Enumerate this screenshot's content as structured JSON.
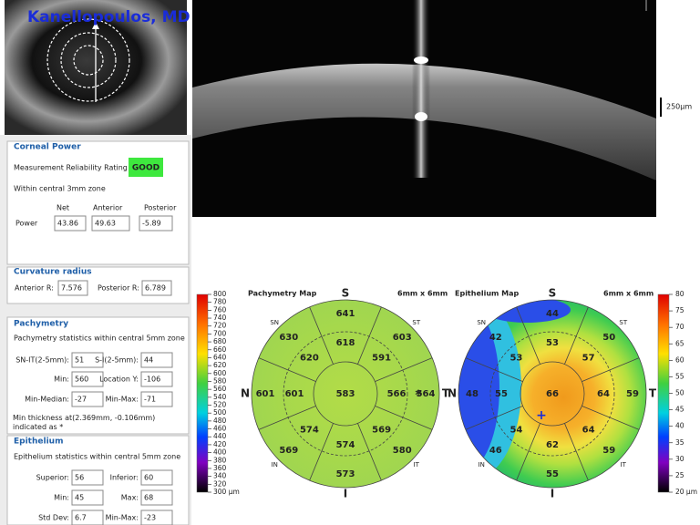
{
  "header": {
    "doctor": "Kanellopoulos, MD"
  },
  "oct_scale": "250µm",
  "corneal_power": {
    "title": "Corneal Power",
    "reliability_label": "Measurement Reliability Rating",
    "reliability": "GOOD",
    "zone": "Within central 3mm zone",
    "columns": [
      "Net",
      "Anterior",
      "Posterior"
    ],
    "row_label": "Power",
    "values": [
      43.86,
      49.63,
      -5.89
    ]
  },
  "curvature_radius": {
    "title": "Curvature radius",
    "fields": [
      {
        "label": "Anterior R:",
        "value": 7.576
      },
      {
        "label": "Posterior R:",
        "value": 6.789
      }
    ]
  },
  "pachymetry": {
    "title": "Pachymetry",
    "note": "Pachymetry statistics within central 5mm zone",
    "fields": [
      {
        "label": "SN-IT(2-5mm):",
        "value": 51
      },
      {
        "label": "S-I(2-5mm):",
        "value": 44
      },
      {
        "label": "Min:",
        "value": 560
      },
      {
        "label": "Location Y:",
        "value": -106
      },
      {
        "label": "Min-Median:",
        "value": -27
      },
      {
        "label": "Min-Max:",
        "value": -71
      }
    ],
    "footnote": "Min thickness at(2.369mm, -0.106mm) indicated as *"
  },
  "epithelium": {
    "title": "Epithelium",
    "note": "Epithelium statistics within central 5mm zone",
    "fields": [
      {
        "label": "Superior:",
        "value": 56
      },
      {
        "label": "Inferior:",
        "value": 60
      },
      {
        "label": "Min:",
        "value": 45
      },
      {
        "label": "Max:",
        "value": 68
      },
      {
        "label": "Std Dev:",
        "value": 6.7
      },
      {
        "label": "Min-Max:",
        "value": -23
      }
    ]
  },
  "maps": [
    {
      "title": "Pachymetry Map",
      "size": "6mm x 6mm",
      "orientation": [
        "S",
        "ST",
        "T",
        "IT",
        "I",
        "IN",
        "N",
        "SN"
      ],
      "center": 583,
      "inner": [
        618,
        591,
        566,
        569,
        574,
        574,
        601,
        620
      ],
      "outer": [
        641,
        603,
        564,
        580,
        573,
        569,
        601,
        630
      ],
      "marker": "*",
      "scale": [
        "800",
        "780",
        "760",
        "740",
        "720",
        "700",
        "680",
        "660",
        "640",
        "620",
        "600",
        "580",
        "560",
        "540",
        "520",
        "500",
        "480",
        "460",
        "440",
        "420",
        "400",
        "380",
        "360",
        "340",
        "320",
        "300 µm"
      ]
    },
    {
      "title": "Epithelium Map",
      "size": "6mm x 6mm",
      "orientation": [
        "S",
        "ST",
        "T",
        "IT",
        "I",
        "IN",
        "N",
        "SN"
      ],
      "center": 66,
      "inner": [
        53,
        57,
        64,
        64,
        62,
        54,
        55,
        53
      ],
      "outer": [
        44,
        50,
        59,
        59,
        55,
        46,
        48,
        42
      ],
      "marker": "+",
      "scale": [
        "80",
        "75",
        "70",
        "65",
        "60",
        "55",
        "50",
        "45",
        "40",
        "35",
        "30",
        "25",
        "20 µm"
      ]
    }
  ]
}
